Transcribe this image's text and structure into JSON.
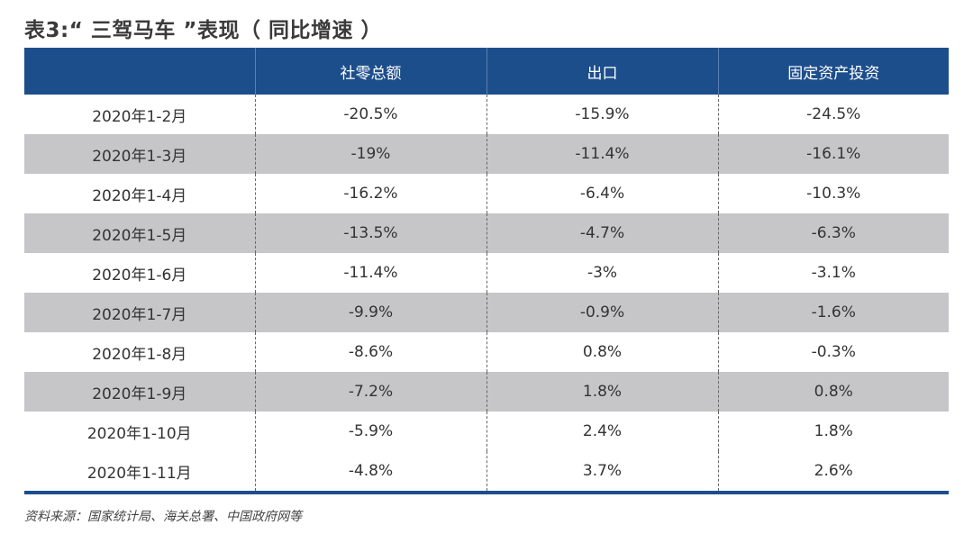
{
  "title": "表3:“ 三驾马车 ”表现（ 同比增速 ）",
  "columns": [
    "",
    "社零总额",
    "出口",
    "固定资产投资"
  ],
  "rows": [
    {
      "period": "2020年1-2月",
      "retail": "-20.5%",
      "export": "-15.9%",
      "investment": "-24.5%"
    },
    {
      "period": "2020年1-3月",
      "retail": "-19%",
      "export": "-11.4%",
      "investment": "-16.1%"
    },
    {
      "period": "2020年1-4月",
      "retail": "-16.2%",
      "export": "-6.4%",
      "investment": "-10.3%"
    },
    {
      "period": "2020年1-5月",
      "retail": "-13.5%",
      "export": "-4.7%",
      "investment": "-6.3%"
    },
    {
      "period": "2020年1-6月",
      "retail": "-11.4%",
      "export": "-3%",
      "investment": "-3.1%"
    },
    {
      "period": "2020年1-7月",
      "retail": "-9.9%",
      "export": "-0.9%",
      "investment": "-1.6%"
    },
    {
      "period": "2020年1-8月",
      "retail": "-8.6%",
      "export": "0.8%",
      "investment": "-0.3%"
    },
    {
      "period": "2020年1-9月",
      "retail": "-7.2%",
      "export": "1.8%",
      "investment": "0.8%"
    },
    {
      "period": "2020年1-10月",
      "retail": "-5.9%",
      "export": "2.4%",
      "investment": "1.8%"
    },
    {
      "period": "2020年1-11月",
      "retail": "-4.8%",
      "export": "3.7%",
      "investment": "2.6%"
    }
  ],
  "source": "资料来源：国家统计局、海关总署、中国政府网等",
  "colors": {
    "header_bg": "#1d4e8c",
    "shaded_row": "#c6c6c8"
  }
}
